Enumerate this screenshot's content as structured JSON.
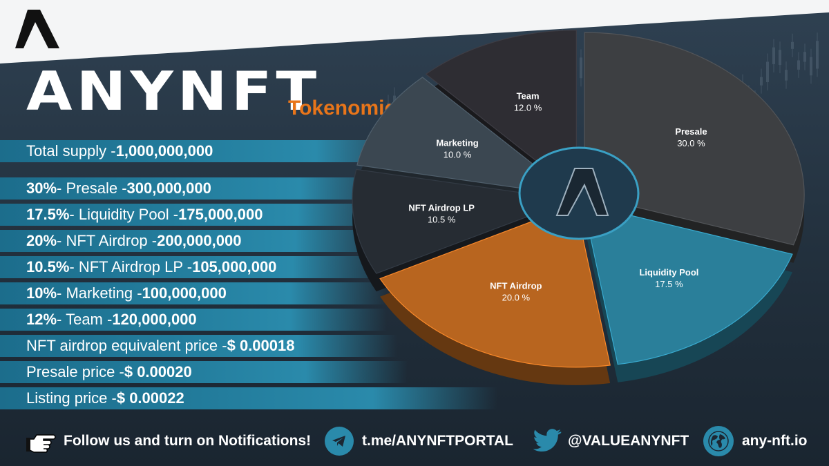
{
  "brand": {
    "name": "ANYNFT",
    "subtitle": "Tokenomics"
  },
  "rows": [
    {
      "pre": "Total supply - ",
      "bold": "1,000,000,000",
      "bold_first": false,
      "lead": "",
      "mid": ""
    },
    {
      "lead": "30%",
      "mid": " - Presale - ",
      "bold": "300,000,000"
    },
    {
      "lead": "17.5%",
      "mid": " - Liquidity Pool - ",
      "bold": "175,000,000"
    },
    {
      "lead": "20%",
      "mid": " - NFT Airdrop - ",
      "bold": "200,000,000"
    },
    {
      "lead": "10.5%",
      "mid": " - NFT Airdrop LP - ",
      "bold": "105,000,000"
    },
    {
      "lead": "10%",
      "mid": " - Marketing - ",
      "bold": "100,000,000"
    },
    {
      "lead": "12%",
      "mid": " - Team - ",
      "bold": "120,000,000"
    },
    {
      "pre": "NFT airdrop equivalent price - ",
      "bold": "$ 0.00018"
    },
    {
      "pre": "Presale price - ",
      "bold": "$ 0.00020"
    },
    {
      "pre": "Listing  price - ",
      "bold": "$ 0.00022"
    }
  ],
  "chart_data": {
    "type": "pie",
    "slices": [
      {
        "label": "Presale",
        "value": 30.0,
        "display": "30.0 %",
        "color": "#3d3f42"
      },
      {
        "label": "Liquidity Pool",
        "value": 17.5,
        "display": "17.5 %",
        "color": "#2a7f9a"
      },
      {
        "label": "NFT Airdrop",
        "value": 20.0,
        "display": "20.0 %",
        "color": "#b8651f"
      },
      {
        "label": "NFT Airdrop LP",
        "value": 10.5,
        "display": "10.5 %",
        "color": "#262c33"
      },
      {
        "label": "Marketing",
        "value": 10.0,
        "display": "10.0 %",
        "color": "#3b4751"
      },
      {
        "label": "Team",
        "value": 12.0,
        "display": "12.0 %",
        "color": "#2e2d33"
      }
    ]
  },
  "footer": {
    "follow_text": "Follow us and turn on Notifications!",
    "telegram": "t.me/ANYNFTPORTAL",
    "twitter": "@VALUEANYNFT",
    "website": "any-nft.io",
    "icons": [
      "pointing-hand-icon",
      "telegram-icon",
      "twitter-icon",
      "globe-icon"
    ]
  },
  "colors": {
    "accent": "#e8751a",
    "teal": "#2a8aab",
    "background": "#22303d"
  }
}
